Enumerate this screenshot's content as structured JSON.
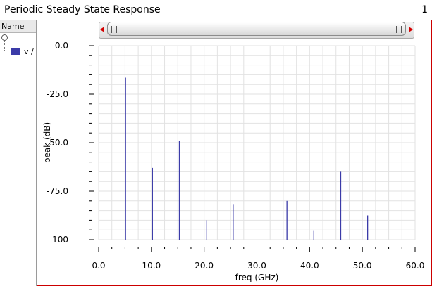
{
  "window": {
    "title": "Periodic Steady State Response",
    "tab_number": "1"
  },
  "tree": {
    "header": "Name",
    "signal_label": "v /",
    "signal_color": "#3b3ba8"
  },
  "chart_data": {
    "type": "bar",
    "xlabel": "freq (GHz)",
    "ylabel": "peak (dB)",
    "xlim": [
      0,
      60
    ],
    "ylim": [
      -100,
      0
    ],
    "xticks": [
      0,
      10,
      20,
      30,
      40,
      50,
      60
    ],
    "xtick_labels": [
      "0.0",
      "10.0",
      "20.0",
      "30.0",
      "40.0",
      "50.0",
      "60.0"
    ],
    "yticks": [
      0,
      -25,
      -50,
      -75,
      -100
    ],
    "ytick_labels": [
      "0.0",
      "-25.0",
      "-50.0",
      "-75.0",
      "-100"
    ],
    "grid": true,
    "series": [
      {
        "color": "#3b3ba8",
        "x": [
          5.1,
          10.2,
          15.3,
          20.4,
          25.5,
          35.7,
          40.8,
          45.9,
          51.0
        ],
        "values": [
          -16.5,
          -63,
          -49,
          -90,
          -82,
          -80,
          -95.5,
          -65,
          -87.5
        ]
      }
    ]
  }
}
